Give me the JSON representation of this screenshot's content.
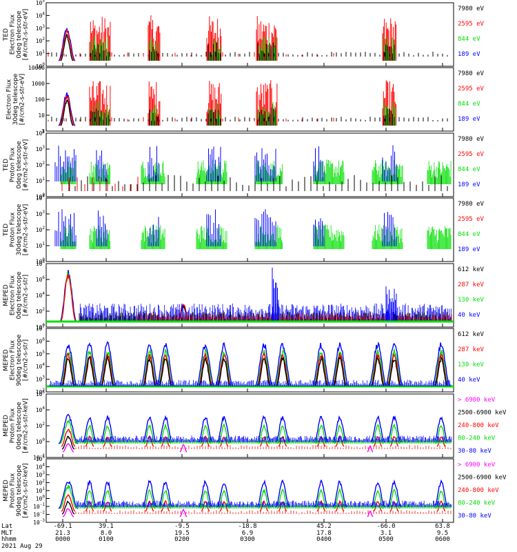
{
  "colors": {
    "blue": "#0000ff",
    "red": "#ff0000",
    "green": "#00e000",
    "black": "#000000",
    "magenta": "#ff00ff"
  },
  "chart_data": [
    {
      "type": "line",
      "ylabel": [
        "TED",
        "Electron Flux",
        "0deg telescope",
        "[#/cm2-s-str-eV]"
      ],
      "y_log": true,
      "yticks": [
        "10^0",
        "10^1",
        "10^2",
        "10^3",
        "10^4",
        "10^5"
      ],
      "legend": [
        {
          "name": "7980 eV",
          "color": "black"
        },
        {
          "name": "2595 eV",
          "color": "red"
        },
        {
          "name": "844 eV",
          "color": "green"
        },
        {
          "name": "189 eV",
          "color": "blue"
        }
      ]
    },
    {
      "type": "line",
      "ylabel": [
        "Electron Flux",
        "30deg telescope",
        "[#/cm2-s-str-eV]"
      ],
      "y_log": true,
      "yticks": [
        "1",
        "10",
        "100",
        "1000",
        "10000"
      ],
      "legend": [
        {
          "name": "7980 eV",
          "color": "black"
        },
        {
          "name": "2595 eV",
          "color": "red"
        },
        {
          "name": "844 eV",
          "color": "green"
        },
        {
          "name": "189 eV",
          "color": "blue"
        }
      ]
    },
    {
      "type": "line",
      "ylabel": [
        "TED",
        "Proton Flux",
        "0deg telescope",
        "[#/cm2-s-str-eV]"
      ],
      "y_log": true,
      "yticks": [
        "10^0",
        "10^1",
        "10^2",
        "10^3",
        "10^4"
      ],
      "legend": [
        {
          "name": "7980 eV",
          "color": "black"
        },
        {
          "name": "2595 eV",
          "color": "red"
        },
        {
          "name": "844 eV",
          "color": "green"
        },
        {
          "name": "189 eV",
          "color": "blue"
        }
      ]
    },
    {
      "type": "line",
      "ylabel": [
        "TED",
        "Proton Flux",
        "30deg telescope",
        "[#/cm2-s-str-eV]"
      ],
      "y_log": true,
      "yticks": [
        "10^0",
        "10^1",
        "10^2",
        "10^3",
        "10^4"
      ],
      "legend": [
        {
          "name": "7980 eV",
          "color": "black"
        },
        {
          "name": "2595 eV",
          "color": "red"
        },
        {
          "name": "844 eV",
          "color": "green"
        },
        {
          "name": "189 eV",
          "color": "blue"
        }
      ]
    },
    {
      "type": "line",
      "ylabel": [
        "MEPED",
        "Electron Flux",
        "0deg telescope",
        "[#/cm2-s-str]"
      ],
      "y_log": true,
      "yticks": [
        "10^0",
        "10^2",
        "10^4",
        "10^6",
        "10^8"
      ],
      "legend": [
        {
          "name": "612 keV",
          "color": "black"
        },
        {
          "name": "287 keV",
          "color": "red"
        },
        {
          "name": "130 keV",
          "color": "green"
        },
        {
          "name": "40 keV",
          "color": "blue"
        }
      ]
    },
    {
      "type": "line",
      "ylabel": [
        "MEPED",
        "Electron Flux",
        "90deg telescope",
        "[#/cm2-s-str]"
      ],
      "y_log": true,
      "yticks": [
        "10^2",
        "10^3",
        "10^4",
        "10^5",
        "10^6",
        "10^7"
      ],
      "legend": [
        {
          "name": "612 keV",
          "color": "black"
        },
        {
          "name": "287 keV",
          "color": "red"
        },
        {
          "name": "130 keV",
          "color": "green"
        },
        {
          "name": "40 keV",
          "color": "blue"
        }
      ]
    },
    {
      "type": "line",
      "ylabel": [
        "MEPED",
        "Proton Flux",
        "0deg telescope",
        "[#/cm2-s-str-keV]"
      ],
      "y_log": true,
      "yticks": [
        "10^-2",
        "10^0",
        "10^2",
        "10^4",
        "10^6"
      ],
      "legend": [
        {
          "name": "> 6900 keV",
          "color": "magenta"
        },
        {
          "name": "2500-6900 keV",
          "color": "black"
        },
        {
          "name": "240-800 keV",
          "color": "red"
        },
        {
          "name": "80-240 keV",
          "color": "green"
        },
        {
          "name": "30-80 keV",
          "color": "blue"
        }
      ]
    },
    {
      "type": "line",
      "ylabel": [
        "MEPED",
        "Proton Flux",
        "90deg telescope",
        "[#/cm2-s-str-keV]"
      ],
      "y_log": true,
      "yticks": [
        "10^-3",
        "10^-2",
        "10^-1",
        "10^0",
        "10^1",
        "10^2",
        "10^3",
        "10^4",
        "10^5"
      ],
      "legend": [
        {
          "name": "> 6900 keV",
          "color": "magenta"
        },
        {
          "name": "2500-6900 keV",
          "color": "black"
        },
        {
          "name": "240-800 keV",
          "color": "red"
        },
        {
          "name": "80-240 keV",
          "color": "green"
        },
        {
          "name": "30-80 keV",
          "color": "blue"
        }
      ]
    }
  ],
  "x_axis": {
    "row_labels": [
      "Lat",
      "MLT",
      "hhmm",
      "2021 Aug 29"
    ],
    "columns": [
      {
        "lat": "-69.1",
        "mlt": "21.3",
        "hhmm": "0000"
      },
      {
        "lat": "39.1",
        "mlt": "8.0",
        "hhmm": "0100"
      },
      {
        "lat": "-9.5",
        "mlt": "19.5",
        "hhmm": "0200"
      },
      {
        "lat": "-18.8",
        "mlt": "6.9",
        "hhmm": "0300"
      },
      {
        "lat": "45.2",
        "mlt": "17.8",
        "hhmm": "0400"
      },
      {
        "lat": "-66.0",
        "mlt": "3.1",
        "hhmm": "0500"
      },
      {
        "lat": "63.8",
        "mlt": "9.5",
        "hhmm": "0600"
      }
    ]
  }
}
